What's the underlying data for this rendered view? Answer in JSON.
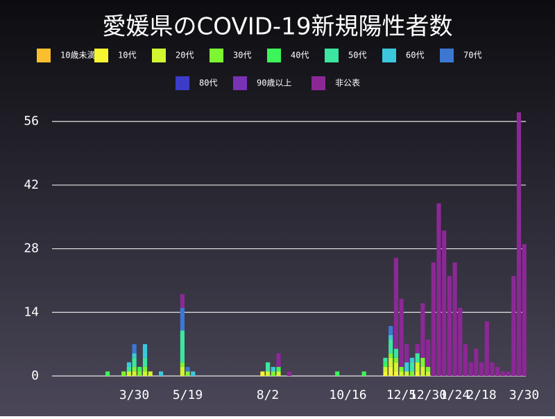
{
  "chart_data": {
    "type": "stacked-bar",
    "title": "愛媛県のCOVID-19新規陽性者数",
    "categories": [
      null,
      null,
      null,
      null,
      null,
      null,
      null,
      null,
      null,
      null,
      null,
      null,
      null,
      null,
      null,
      "3/30",
      null,
      null,
      null,
      null,
      null,
      null,
      null,
      null,
      null,
      "5/19",
      null,
      null,
      null,
      null,
      null,
      null,
      null,
      null,
      null,
      null,
      null,
      null,
      null,
      null,
      "8/2",
      null,
      null,
      null,
      null,
      null,
      null,
      null,
      null,
      null,
      null,
      null,
      null,
      null,
      null,
      "10/16",
      null,
      null,
      null,
      null,
      null,
      null,
      null,
      null,
      null,
      "12/5",
      null,
      null,
      null,
      null,
      "12/30",
      null,
      null,
      null,
      null,
      "1/24",
      null,
      null,
      null,
      null,
      "2/18",
      null,
      null,
      null,
      null,
      null,
      null,
      null,
      "3/30"
    ],
    "series": [
      {
        "name": "10歳未満",
        "color": "#fbbf2d",
        "values": [
          0,
          0,
          0,
          0,
          0,
          0,
          0,
          0,
          0,
          0,
          0,
          0,
          0,
          0,
          0,
          0,
          0,
          0,
          0,
          0,
          0,
          0,
          0,
          0,
          0,
          0,
          0,
          0,
          0,
          0,
          0,
          0,
          0,
          0,
          0,
          0,
          0,
          0,
          0,
          0,
          0,
          0,
          0,
          0,
          0,
          0,
          0,
          0,
          0,
          0,
          0,
          0,
          0,
          0,
          0,
          0,
          0,
          0,
          0,
          0,
          0,
          0,
          0,
          0,
          0,
          0,
          0,
          0,
          0,
          0,
          0,
          0,
          0,
          0,
          0,
          0,
          0,
          0,
          0,
          0,
          0,
          0,
          0,
          0,
          0,
          0,
          0,
          0,
          0
        ]
      },
      {
        "name": "10代",
        "color": "#f5f532",
        "values": [
          0,
          0,
          0,
          0,
          0,
          0,
          0,
          0,
          0,
          0,
          0,
          0,
          0,
          0,
          0,
          0,
          0,
          0,
          0,
          0,
          0,
          0,
          0,
          0,
          0,
          0,
          0,
          0,
          0,
          0,
          0,
          0,
          0,
          0,
          0,
          0,
          0,
          0,
          0,
          1,
          0,
          0,
          0,
          0,
          0,
          0,
          0,
          0,
          0,
          0,
          0,
          0,
          0,
          0,
          0,
          0,
          0,
          0,
          0,
          0,
          0,
          0,
          1,
          2,
          1,
          0,
          0,
          0,
          1,
          0,
          0,
          0,
          0,
          0,
          0,
          0,
          0,
          0,
          0,
          0,
          0,
          0,
          0,
          0,
          0,
          0,
          0,
          0,
          0
        ]
      },
      {
        "name": "20代",
        "color": "#d2f532",
        "values": [
          0,
          0,
          0,
          0,
          0,
          0,
          0,
          0,
          0,
          0,
          0,
          0,
          0,
          0,
          1,
          1,
          0,
          1,
          1,
          0,
          0,
          0,
          0,
          0,
          2,
          0,
          0,
          0,
          0,
          0,
          0,
          0,
          0,
          0,
          0,
          0,
          0,
          0,
          0,
          0,
          1,
          0,
          1,
          0,
          0,
          0,
          0,
          0,
          0,
          0,
          0,
          0,
          0,
          0,
          0,
          0,
          0,
          0,
          0,
          0,
          0,
          0,
          1,
          2,
          2,
          1,
          1,
          0,
          2,
          2,
          1,
          0,
          0,
          0,
          0,
          0,
          0,
          0,
          0,
          0,
          0,
          0,
          0,
          0,
          0,
          0,
          0,
          0,
          0
        ]
      },
      {
        "name": "30代",
        "color": "#7df532",
        "values": [
          0,
          0,
          0,
          0,
          0,
          0,
          0,
          0,
          0,
          0,
          0,
          0,
          0,
          1,
          0,
          1,
          1,
          1,
          0,
          0,
          0,
          0,
          0,
          0,
          1,
          1,
          0,
          0,
          0,
          0,
          0,
          0,
          0,
          0,
          0,
          0,
          0,
          0,
          0,
          0,
          0,
          1,
          0,
          0,
          0,
          0,
          0,
          0,
          0,
          0,
          0,
          0,
          0,
          0,
          0,
          0,
          0,
          0,
          0,
          0,
          0,
          0,
          0,
          1,
          1,
          1,
          0,
          1,
          0,
          2,
          1,
          0,
          0,
          0,
          0,
          0,
          0,
          0,
          0,
          0,
          0,
          0,
          0,
          0,
          0,
          0,
          0,
          0,
          0
        ]
      },
      {
        "name": "40代",
        "color": "#3cf55a",
        "values": [
          0,
          0,
          0,
          0,
          0,
          0,
          0,
          0,
          0,
          0,
          1,
          0,
          0,
          0,
          0,
          0,
          1,
          0,
          0,
          0,
          0,
          0,
          0,
          0,
          0,
          0,
          0,
          0,
          0,
          0,
          0,
          0,
          0,
          0,
          0,
          0,
          0,
          0,
          0,
          0,
          0,
          0,
          1,
          0,
          0,
          0,
          0,
          0,
          0,
          0,
          0,
          0,
          0,
          1,
          0,
          0,
          0,
          0,
          1,
          0,
          0,
          0,
          1,
          0,
          0,
          0,
          0,
          0,
          0,
          0,
          0,
          0,
          0,
          0,
          0,
          0,
          0,
          0,
          0,
          0,
          0,
          0,
          0,
          0,
          0,
          0,
          0,
          0,
          0
        ]
      },
      {
        "name": "50代",
        "color": "#3ce6a0",
        "values": [
          0,
          0,
          0,
          0,
          0,
          0,
          0,
          0,
          0,
          0,
          0,
          0,
          0,
          0,
          1,
          2,
          0,
          2,
          0,
          0,
          0,
          0,
          0,
          0,
          7,
          0,
          0,
          0,
          0,
          0,
          0,
          0,
          0,
          0,
          0,
          0,
          0,
          0,
          0,
          0,
          2,
          0,
          0,
          0,
          0,
          0,
          0,
          0,
          0,
          0,
          0,
          0,
          0,
          0,
          0,
          0,
          0,
          0,
          0,
          0,
          0,
          0,
          1,
          3,
          2,
          0,
          0,
          2,
          2,
          0,
          0,
          0,
          0,
          0,
          0,
          0,
          0,
          0,
          0,
          0,
          0,
          0,
          0,
          0,
          0,
          0,
          0,
          0,
          0
        ]
      },
      {
        "name": "60代",
        "color": "#3cc8dc",
        "values": [
          0,
          0,
          0,
          0,
          0,
          0,
          0,
          0,
          0,
          0,
          0,
          0,
          0,
          0,
          1,
          1,
          0,
          3,
          0,
          0,
          1,
          0,
          0,
          0,
          0,
          0,
          1,
          0,
          0,
          0,
          0,
          0,
          0,
          0,
          0,
          0,
          0,
          0,
          0,
          0,
          0,
          1,
          0,
          0,
          0,
          0,
          0,
          0,
          0,
          0,
          0,
          0,
          0,
          0,
          0,
          0,
          0,
          0,
          0,
          0,
          0,
          0,
          0,
          1,
          0,
          0,
          2,
          1,
          0,
          0,
          0,
          0,
          0,
          0,
          0,
          0,
          0,
          0,
          0,
          0,
          0,
          0,
          0,
          0,
          0,
          0,
          0,
          0,
          0
        ]
      },
      {
        "name": "70代",
        "color": "#3c78d2",
        "values": [
          0,
          0,
          0,
          0,
          0,
          0,
          0,
          0,
          0,
          0,
          0,
          0,
          0,
          0,
          0,
          2,
          0,
          0,
          0,
          0,
          0,
          0,
          0,
          0,
          5,
          1,
          0,
          0,
          0,
          0,
          0,
          0,
          0,
          0,
          0,
          0,
          0,
          0,
          0,
          0,
          0,
          0,
          0,
          0,
          0,
          0,
          0,
          0,
          0,
          0,
          0,
          0,
          0,
          0,
          0,
          0,
          0,
          0,
          0,
          0,
          0,
          0,
          0,
          2,
          0,
          0,
          0,
          0,
          0,
          0,
          0,
          0,
          0,
          0,
          0,
          0,
          0,
          0,
          0,
          0,
          0,
          0,
          0,
          0,
          0,
          0,
          0,
          0,
          0
        ]
      },
      {
        "name": "80代",
        "color": "#3c3cc8",
        "values": [
          0,
          0,
          0,
          0,
          0,
          0,
          0,
          0,
          0,
          0,
          0,
          0,
          0,
          0,
          0,
          0,
          0,
          0,
          0,
          0,
          0,
          0,
          0,
          0,
          0,
          0,
          0,
          0,
          0,
          0,
          0,
          0,
          0,
          0,
          0,
          0,
          0,
          0,
          0,
          0,
          0,
          0,
          0,
          0,
          0,
          0,
          0,
          0,
          0,
          0,
          0,
          0,
          0,
          0,
          0,
          0,
          0,
          0,
          0,
          0,
          0,
          0,
          0,
          0,
          0,
          0,
          0,
          0,
          0,
          0,
          0,
          0,
          0,
          0,
          0,
          0,
          0,
          0,
          0,
          0,
          0,
          0,
          0,
          0,
          0,
          0,
          0,
          0,
          0
        ]
      },
      {
        "name": "90歳以上",
        "color": "#7832b4",
        "values": [
          0,
          0,
          0,
          0,
          0,
          0,
          0,
          0,
          0,
          0,
          0,
          0,
          0,
          0,
          0,
          0,
          0,
          0,
          0,
          0,
          0,
          0,
          0,
          0,
          0,
          0,
          0,
          0,
          0,
          0,
          0,
          0,
          0,
          0,
          0,
          0,
          0,
          0,
          0,
          0,
          0,
          0,
          0,
          0,
          0,
          0,
          0,
          0,
          0,
          0,
          0,
          0,
          0,
          0,
          0,
          0,
          0,
          0,
          0,
          0,
          0,
          0,
          0,
          0,
          0,
          0,
          0,
          0,
          0,
          0,
          0,
          0,
          0,
          0,
          0,
          0,
          0,
          0,
          0,
          0,
          0,
          0,
          0,
          0,
          0,
          0,
          0,
          0,
          0
        ]
      },
      {
        "name": "非公表",
        "color": "#8c2896",
        "values": [
          0,
          0,
          0,
          0,
          0,
          0,
          0,
          0,
          0,
          0,
          0,
          0,
          0,
          0,
          0,
          0,
          0,
          0,
          0,
          0,
          0,
          0,
          0,
          0,
          3,
          0,
          0,
          0,
          0,
          0,
          0,
          0,
          0,
          0,
          0,
          0,
          0,
          0,
          0,
          0,
          0,
          0,
          3,
          0,
          1,
          0,
          0,
          0,
          0,
          0,
          0,
          0,
          0,
          0,
          0,
          0,
          0,
          0,
          0,
          0,
          0,
          0,
          0,
          0,
          20,
          15,
          4,
          0,
          2,
          12,
          6,
          25,
          38,
          32,
          22,
          25,
          15,
          7,
          3,
          6,
          3,
          12,
          3,
          2,
          1,
          1,
          22,
          58,
          29
        ]
      }
    ],
    "ylim": [
      0,
      58
    ],
    "yticks": [
      0,
      14,
      28,
      42,
      56
    ],
    "grid": true
  }
}
